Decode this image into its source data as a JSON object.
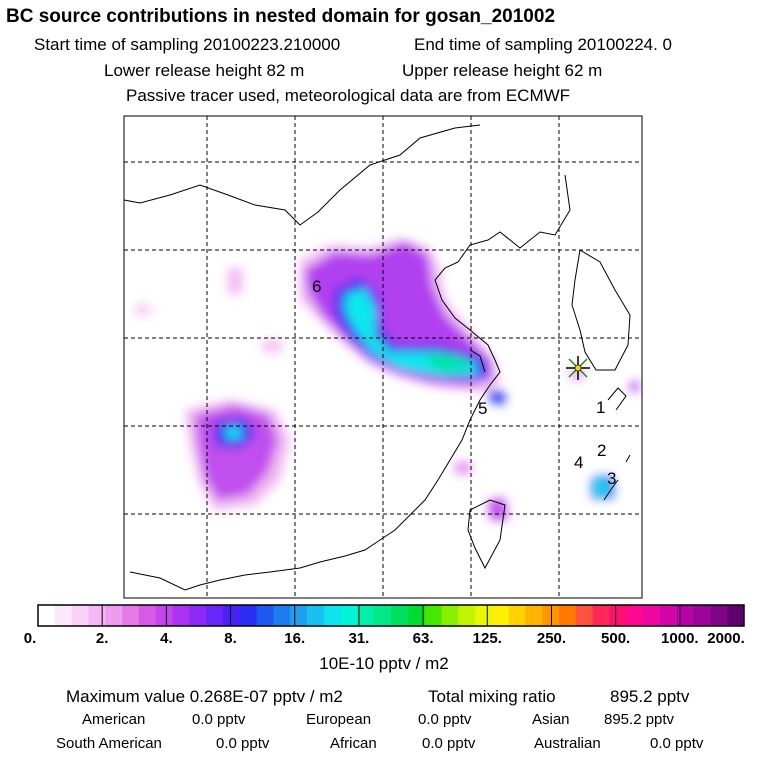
{
  "header": {
    "title": "BC  source contributions in nested domain for gosan_201002",
    "start_time": "Start time of sampling 20100223.210000",
    "end_time": "End time of sampling 20100224.      0",
    "lower_release": "Lower release height   82 m",
    "upper_release": "Upper release height   62 m",
    "tracer_note": "Passive tracer used, meteorological data are from ECMWF"
  },
  "chart_data": {
    "type": "heatmap",
    "title": "BC  source contributions in nested domain for gosan_201002",
    "colorbar": {
      "ticks": [
        "0.",
        "2.",
        "4.",
        "8.",
        "16.",
        "31.",
        "63.",
        "125.",
        "250.",
        "500.",
        "1000.",
        "2000."
      ],
      "colors": [
        "#ffffff",
        "#fbe8fb",
        "#f8d2f8",
        "#f4b9f4",
        "#ee9cee",
        "#e679e6",
        "#d65ae6",
        "#c444ee",
        "#aa33f4",
        "#8a2bf6",
        "#6a25f8",
        "#4a20f8",
        "#2a2ef4",
        "#1f58f0",
        "#1f7cf0",
        "#1f9ef0",
        "#18c0f0",
        "#0ee4ee",
        "#00f4d8",
        "#00f0a8",
        "#00e888",
        "#00e060",
        "#00dc30",
        "#44e800",
        "#88f000",
        "#c0f400",
        "#e8f800",
        "#fff000",
        "#ffd200",
        "#ffb400",
        "#ff9600",
        "#ff7800",
        "#ff5040",
        "#ff2858",
        "#ff1070",
        "#ff0890",
        "#ee06a0",
        "#d205a8",
        "#b404a8",
        "#9a0498",
        "#800488",
        "#600070"
      ],
      "unit": "10E-10 pptv / m2"
    },
    "receptor_marker": "sun-star",
    "source_labels": [
      "1",
      "2",
      "3",
      "4",
      "5",
      "6"
    ]
  },
  "summary": {
    "max_label": "Maximum value  0.268E-07 pptv / m2",
    "total_label": "Total mixing ratio",
    "total_value": "895.2 pptv",
    "regions": [
      {
        "name": "American",
        "value": "0.0 pptv"
      },
      {
        "name": "European",
        "value": "0.0 pptv"
      },
      {
        "name": "Asian",
        "value": "895.2 pptv"
      },
      {
        "name": "South American",
        "value": "0.0 pptv"
      },
      {
        "name": "African",
        "value": "0.0 pptv"
      },
      {
        "name": "Australian",
        "value": "0.0 pptv"
      }
    ]
  }
}
